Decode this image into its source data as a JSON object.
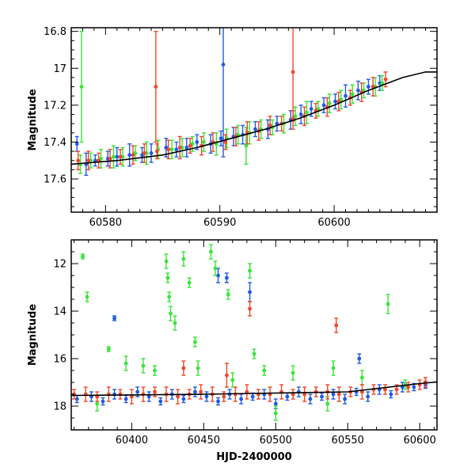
{
  "chart_data": [
    {
      "type": "scatter",
      "panel": "top",
      "xlim": [
        60577,
        60609
      ],
      "ylim": [
        17.78,
        16.78
      ],
      "y_inverted": true,
      "xlabel": "",
      "ylabel": "Magnitude",
      "x_ticks": [
        60580,
        60590,
        60600
      ],
      "y_ticks": [
        16.8,
        17,
        17.2,
        17.4,
        17.6
      ],
      "error_bars": true,
      "model_curve": {
        "name": "",
        "color": "#000000",
        "x": [
          60577,
          60581,
          60585,
          60588,
          60591,
          60594,
          60597,
          60600,
          60603,
          60606,
          60608,
          60609
        ],
        "y": [
          17.52,
          17.5,
          17.47,
          17.43,
          17.38,
          17.33,
          17.27,
          17.2,
          17.12,
          17.05,
          17.02,
          17.02
        ]
      },
      "series": [
        {
          "color": "#1e5be6",
          "x": [
            60577.5,
            60578.3,
            60579.1,
            60580.2,
            60581.0,
            60582.1,
            60583.2,
            60584.0,
            60585.3,
            60586.2,
            60587.1,
            60588.0,
            60589.2,
            60590.1,
            60590.3,
            60591.2,
            60592.0,
            60593.1,
            60594.2,
            60595.0,
            60596.2,
            60597.1,
            60598.0,
            60599.1,
            60600.1,
            60601.0,
            60602.1,
            60603.0,
            60604.0
          ],
          "y": [
            17.41,
            17.52,
            17.5,
            17.49,
            17.48,
            17.47,
            17.47,
            17.46,
            17.43,
            17.44,
            17.43,
            17.4,
            17.41,
            17.38,
            16.98,
            17.37,
            17.36,
            17.33,
            17.33,
            17.3,
            17.28,
            17.25,
            17.22,
            17.2,
            17.18,
            17.15,
            17.12,
            17.1,
            17.08
          ],
          "err": [
            0.04,
            0.06,
            0.03,
            0.04,
            0.05,
            0.06,
            0.04,
            0.05,
            0.05,
            0.04,
            0.05,
            0.04,
            0.05,
            0.04,
            0.5,
            0.05,
            0.05,
            0.04,
            0.05,
            0.04,
            0.05,
            0.05,
            0.04,
            0.04,
            0.04,
            0.06,
            0.05,
            0.04,
            0.04
          ]
        },
        {
          "color": "#37e637",
          "x": [
            60577.8,
            60578.7,
            60579.6,
            60580.7,
            60581.5,
            60582.6,
            60583.6,
            60584.6,
            60585.8,
            60586.7,
            60587.6,
            60588.6,
            60589.7,
            60590.6,
            60591.6,
            60592.6,
            60593.6,
            60594.6,
            60595.6,
            60596.6,
            60597.6,
            60598.6,
            60599.6,
            60600.6,
            60601.6,
            60602.6,
            60603.6,
            60604.2,
            60592.3,
            60577.9
          ],
          "y": [
            17.52,
            17.5,
            17.49,
            17.48,
            17.48,
            17.46,
            17.46,
            17.44,
            17.44,
            17.43,
            17.41,
            17.4,
            17.41,
            17.38,
            17.36,
            17.35,
            17.33,
            17.32,
            17.3,
            17.26,
            17.24,
            17.22,
            17.19,
            17.17,
            17.14,
            17.12,
            17.1,
            17.08,
            17.42,
            17.1
          ],
          "err": [
            0.05,
            0.04,
            0.05,
            0.06,
            0.05,
            0.04,
            0.06,
            0.05,
            0.05,
            0.05,
            0.04,
            0.05,
            0.06,
            0.05,
            0.05,
            0.06,
            0.05,
            0.04,
            0.05,
            0.05,
            0.06,
            0.04,
            0.05,
            0.05,
            0.05,
            0.04,
            0.05,
            0.04,
            0.1,
            0.3
          ]
        },
        {
          "color": "#f0472a",
          "x": [
            60577.6,
            60578.5,
            60579.4,
            60580.4,
            60581.3,
            60582.4,
            60583.4,
            60584.5,
            60585.5,
            60586.5,
            60587.4,
            60588.4,
            60589.4,
            60590.5,
            60591.4,
            60592.4,
            60593.4,
            60594.4,
            60595.4,
            60596.4,
            60597.4,
            60598.4,
            60599.4,
            60600.4,
            60601.4,
            60602.4,
            60603.4,
            60604.5,
            60596.4,
            60584.4
          ],
          "y": [
            17.5,
            17.5,
            17.5,
            17.49,
            17.48,
            17.47,
            17.46,
            17.45,
            17.44,
            17.43,
            17.42,
            17.42,
            17.4,
            17.4,
            17.37,
            17.35,
            17.34,
            17.31,
            17.3,
            17.28,
            17.26,
            17.23,
            17.21,
            17.18,
            17.16,
            17.13,
            17.1,
            17.06,
            17.02,
            17.1
          ],
          "err": [
            0.05,
            0.05,
            0.04,
            0.05,
            0.04,
            0.05,
            0.05,
            0.04,
            0.05,
            0.06,
            0.04,
            0.05,
            0.05,
            0.04,
            0.05,
            0.06,
            0.05,
            0.05,
            0.04,
            0.05,
            0.05,
            0.04,
            0.05,
            0.05,
            0.04,
            0.05,
            0.05,
            0.04,
            0.25,
            0.3
          ]
        }
      ]
    },
    {
      "type": "scatter",
      "panel": "bottom",
      "xlim": [
        60358,
        60612
      ],
      "ylim": [
        19.0,
        11.0
      ],
      "y_inverted": true,
      "xlabel": "HJD-2400000",
      "ylabel": "Magnitude",
      "x_ticks": [
        60400,
        60450,
        60500,
        60550,
        60600
      ],
      "y_ticks": [
        12,
        14,
        16,
        18
      ],
      "error_bars": true,
      "model_curve": {
        "name": "",
        "color": "#000000",
        "x": [
          60358,
          60450,
          60550,
          60600,
          60612
        ],
        "y": [
          17.55,
          17.5,
          17.4,
          17.05,
          16.98
        ]
      },
      "series": [
        {
          "color": "#1e5be6",
          "x": [
            60362,
            60372,
            60380,
            60388,
            60396,
            60404,
            60412,
            60420,
            60428,
            60436,
            60444,
            60452,
            60460,
            60468,
            60476,
            60484,
            60492,
            60500,
            60508,
            60516,
            60524,
            60532,
            60540,
            60548,
            60556,
            60564,
            60572,
            60580,
            60588,
            60596,
            60604,
            60388,
            60460,
            60482,
            60558,
            60466
          ],
          "y": [
            17.7,
            17.6,
            17.8,
            17.5,
            17.7,
            17.4,
            17.6,
            17.8,
            17.5,
            17.7,
            17.4,
            17.6,
            17.8,
            17.5,
            17.7,
            17.6,
            17.5,
            17.9,
            17.6,
            17.4,
            17.7,
            17.6,
            17.5,
            17.7,
            17.4,
            17.6,
            17.3,
            17.5,
            17.2,
            17.2,
            17.1,
            14.3,
            12.5,
            13.2,
            16.0,
            12.6
          ],
          "err": [
            0.15,
            0.2,
            0.15,
            0.2,
            0.15,
            0.2,
            0.2,
            0.15,
            0.2,
            0.15,
            0.2,
            0.2,
            0.15,
            0.2,
            0.2,
            0.15,
            0.2,
            0.2,
            0.15,
            0.2,
            0.2,
            0.15,
            0.2,
            0.2,
            0.15,
            0.2,
            0.2,
            0.15,
            0.2,
            0.15,
            0.15,
            0.1,
            0.3,
            0.4,
            0.2,
            0.2
          ]
        },
        {
          "color": "#37e637",
          "x": [
            60366,
            60369,
            60384,
            60396,
            60408,
            60424,
            60425,
            60426,
            60427,
            60430,
            60436,
            60440,
            60455,
            60458,
            60467,
            60482,
            60485,
            60540,
            60578,
            60590,
            60376,
            60416,
            60446,
            60470,
            60492,
            60512,
            60536,
            60560,
            60444,
            60500
          ],
          "y": [
            11.7,
            13.4,
            15.6,
            16.2,
            16.3,
            11.9,
            12.6,
            13.4,
            14.1,
            14.5,
            11.8,
            12.8,
            11.5,
            12.2,
            13.3,
            12.3,
            15.8,
            16.4,
            13.7,
            17.1,
            17.9,
            16.5,
            16.4,
            16.9,
            16.5,
            16.6,
            17.9,
            16.8,
            15.3,
            18.3
          ],
          "err": [
            0.1,
            0.2,
            0.1,
            0.3,
            0.3,
            0.3,
            0.2,
            0.2,
            0.3,
            0.3,
            0.3,
            0.2,
            0.3,
            0.3,
            0.2,
            0.3,
            0.2,
            0.3,
            0.4,
            0.2,
            0.3,
            0.2,
            0.3,
            0.3,
            0.2,
            0.3,
            0.3,
            0.3,
            0.2,
            0.3
          ]
        },
        {
          "color": "#f0472a",
          "x": [
            60360,
            60368,
            60376,
            60384,
            60392,
            60400,
            60408,
            60416,
            60424,
            60432,
            60440,
            60448,
            60456,
            60464,
            60472,
            60480,
            60488,
            60496,
            60504,
            60512,
            60520,
            60528,
            60536,
            60544,
            60552,
            60560,
            60568,
            60576,
            60584,
            60592,
            60600,
            60604,
            60436,
            60542,
            60482,
            60466
          ],
          "y": [
            17.5,
            17.5,
            17.6,
            17.5,
            17.5,
            17.6,
            17.5,
            17.4,
            17.5,
            17.6,
            17.5,
            17.4,
            17.5,
            17.6,
            17.5,
            17.4,
            17.5,
            17.5,
            17.4,
            17.5,
            17.5,
            17.4,
            17.4,
            17.5,
            17.4,
            17.4,
            17.3,
            17.3,
            17.3,
            17.2,
            17.1,
            17.0,
            16.4,
            14.6,
            13.9,
            16.7
          ],
          "err": [
            0.2,
            0.3,
            0.2,
            0.3,
            0.2,
            0.3,
            0.3,
            0.2,
            0.3,
            0.3,
            0.2,
            0.3,
            0.3,
            0.2,
            0.3,
            0.3,
            0.2,
            0.3,
            0.3,
            0.2,
            0.3,
            0.2,
            0.3,
            0.3,
            0.2,
            0.3,
            0.2,
            0.2,
            0.2,
            0.2,
            0.2,
            0.2,
            0.3,
            0.3,
            0.3,
            0.5
          ]
        }
      ]
    }
  ]
}
